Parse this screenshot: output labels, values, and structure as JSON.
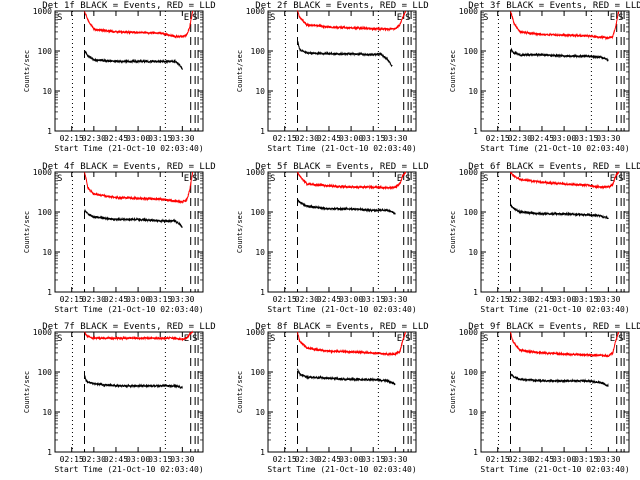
{
  "colors": {
    "events": "#000000",
    "lld": "#ff0000",
    "background": "#ffffff"
  },
  "chart_data": [
    {
      "type": "line",
      "title": "Det 1f BLACK = Events, RED = LLD",
      "xlabel": "Start Time (21-Oct-10 02:03:40)",
      "ylabel": "Counts/sec",
      "yscale": "log",
      "ylim": [
        1,
        1000
      ],
      "y_ticks": [
        "1",
        "10",
        "100",
        "1000"
      ],
      "xlim": [
        "02:03:40",
        "03:44:00"
      ],
      "x_ticks": [
        "02:15",
        "02:30",
        "02:45",
        "03:00",
        "03:15",
        "03:30"
      ],
      "markers": {
        "start": "S",
        "end": "E"
      },
      "vlines": [
        {
          "style": "dotted",
          "time": "02:15:30"
        },
        {
          "style": "dashed",
          "time": "02:23:40"
        },
        {
          "style": "dotted",
          "time": "03:18:30"
        },
        {
          "style": "dashed",
          "time": "03:35:40"
        },
        {
          "style": "dashed",
          "time": "03:38:40"
        },
        {
          "style": "dashed",
          "time": "03:40:40"
        }
      ],
      "series": [
        {
          "name": "LLD",
          "color": "red",
          "x": [
            "02:23:40",
            "02:26:00",
            "02:30:00",
            "02:45:00",
            "03:00:00",
            "03:15:00",
            "03:25:00",
            "03:30:00",
            "03:33:00",
            "03:35:00",
            "03:37:00"
          ],
          "y": [
            1000,
            600,
            350,
            300,
            290,
            280,
            230,
            230,
            250,
            400,
            1000
          ]
        },
        {
          "name": "Events",
          "color": "black",
          "x": [
            "02:23:40",
            "02:26:00",
            "02:30:00",
            "02:45:00",
            "03:00:00",
            "03:15:00",
            "03:25:00",
            "03:28:00",
            "03:30:00"
          ],
          "y": [
            100,
            75,
            60,
            55,
            55,
            55,
            55,
            45,
            35
          ]
        }
      ]
    },
    {
      "type": "line",
      "title": "Det 2f BLACK = Events, RED = LLD",
      "xlabel": "Start Time (21-Oct-10 02:03:40)",
      "ylabel": "Counts/sec",
      "yscale": "log",
      "ylim": [
        1,
        1000
      ],
      "y_ticks": [
        "1",
        "10",
        "100",
        "1000"
      ],
      "xlim": [
        "02:03:40",
        "03:44:00"
      ],
      "x_ticks": [
        "02:15",
        "02:30",
        "02:45",
        "03:00",
        "03:15",
        "03:30"
      ],
      "markers": {
        "start": "S",
        "end": "E"
      },
      "vlines": [
        {
          "style": "dotted",
          "time": "02:15:30"
        },
        {
          "style": "dashed",
          "time": "02:23:40"
        },
        {
          "style": "dotted",
          "time": "03:18:30"
        },
        {
          "style": "dashed",
          "time": "03:35:40"
        },
        {
          "style": "dashed",
          "time": "03:38:40"
        },
        {
          "style": "dashed",
          "time": "03:40:40"
        }
      ],
      "series": [
        {
          "name": "LLD",
          "color": "red",
          "x": [
            "02:23:40",
            "02:25:00",
            "02:30:00",
            "02:45:00",
            "03:00:00",
            "03:15:00",
            "03:25:00",
            "03:30:00",
            "03:33:00",
            "03:35:00",
            "03:37:00"
          ],
          "y": [
            1000,
            700,
            450,
            400,
            380,
            360,
            350,
            360,
            450,
            700,
            1000
          ]
        },
        {
          "name": "Events",
          "color": "black",
          "x": [
            "02:23:40",
            "02:25:00",
            "02:30:00",
            "02:45:00",
            "03:00:00",
            "03:15:00",
            "03:20:00",
            "03:25:00",
            "03:28:00"
          ],
          "y": [
            180,
            110,
            90,
            85,
            85,
            80,
            85,
            60,
            40
          ]
        }
      ]
    },
    {
      "type": "line",
      "title": "Det 3f BLACK = Events, RED = LLD",
      "xlabel": "Start Time (21-Oct-10 02:03:40)",
      "ylabel": "Counts/sec",
      "yscale": "log",
      "ylim": [
        1,
        1000
      ],
      "y_ticks": [
        "1",
        "10",
        "100",
        "1000"
      ],
      "xlim": [
        "02:03:40",
        "03:44:00"
      ],
      "x_ticks": [
        "02:15",
        "02:30",
        "02:45",
        "03:00",
        "03:15",
        "03:30"
      ],
      "markers": {
        "start": "S",
        "end": "E"
      },
      "vlines": [
        {
          "style": "dotted",
          "time": "02:15:30"
        },
        {
          "style": "dashed",
          "time": "02:23:40"
        },
        {
          "style": "dotted",
          "time": "03:18:30"
        },
        {
          "style": "dashed",
          "time": "03:35:40"
        },
        {
          "style": "dashed",
          "time": "03:38:40"
        },
        {
          "style": "dashed",
          "time": "03:40:40"
        }
      ],
      "series": [
        {
          "name": "LLD",
          "color": "red",
          "x": [
            "02:23:40",
            "02:26:00",
            "02:30:00",
            "02:45:00",
            "03:00:00",
            "03:15:00",
            "03:25:00",
            "03:30:00",
            "03:33:00",
            "03:35:00",
            "03:37:00"
          ],
          "y": [
            1000,
            500,
            300,
            260,
            250,
            240,
            220,
            210,
            230,
            400,
            1000
          ]
        },
        {
          "name": "Events",
          "color": "black",
          "x": [
            "02:23:40",
            "02:26:00",
            "02:30:00",
            "02:45:00",
            "03:00:00",
            "03:15:00",
            "03:25:00",
            "03:30:00"
          ],
          "y": [
            110,
            90,
            80,
            80,
            75,
            75,
            70,
            60
          ]
        }
      ]
    },
    {
      "type": "line",
      "title": "Det 4f BLACK = Events, RED = LLD",
      "xlabel": "Start Time (21-Oct-10 02:03:40)",
      "ylabel": "Counts/sec",
      "yscale": "log",
      "ylim": [
        1,
        1000
      ],
      "y_ticks": [
        "1",
        "10",
        "100",
        "1000"
      ],
      "xlim": [
        "02:03:40",
        "03:44:00"
      ],
      "x_ticks": [
        "02:15",
        "02:30",
        "02:45",
        "03:00",
        "03:15",
        "03:30"
      ],
      "markers": {
        "start": "S",
        "end": "E"
      },
      "vlines": [
        {
          "style": "dotted",
          "time": "02:15:30"
        },
        {
          "style": "dashed",
          "time": "02:23:40"
        },
        {
          "style": "dotted",
          "time": "03:18:30"
        },
        {
          "style": "dashed",
          "time": "03:35:40"
        },
        {
          "style": "dashed",
          "time": "03:38:40"
        },
        {
          "style": "dashed",
          "time": "03:40:40"
        }
      ],
      "series": [
        {
          "name": "LLD",
          "color": "red",
          "x": [
            "02:23:40",
            "02:26:00",
            "02:30:00",
            "02:45:00",
            "03:00:00",
            "03:15:00",
            "03:25:00",
            "03:30:00",
            "03:33:00",
            "03:35:00",
            "03:37:00"
          ],
          "y": [
            1000,
            400,
            280,
            230,
            220,
            210,
            190,
            180,
            200,
            350,
            1000
          ]
        },
        {
          "name": "Events",
          "color": "black",
          "x": [
            "02:23:40",
            "02:25:00",
            "02:30:00",
            "02:45:00",
            "03:00:00",
            "03:15:00",
            "03:25:00",
            "03:28:00",
            "03:30:00"
          ],
          "y": [
            110,
            95,
            75,
            65,
            65,
            60,
            60,
            50,
            40
          ]
        }
      ]
    },
    {
      "type": "line",
      "title": "Det 5f BLACK = Events, RED = LLD",
      "xlabel": "Start Time (21-Oct-10 02:03:40)",
      "ylabel": "Counts/sec",
      "yscale": "log",
      "ylim": [
        1,
        1000
      ],
      "y_ticks": [
        "1",
        "10",
        "100",
        "1000"
      ],
      "xlim": [
        "02:03:40",
        "03:44:00"
      ],
      "x_ticks": [
        "02:15",
        "02:30",
        "02:45",
        "03:00",
        "03:15",
        "03:30"
      ],
      "markers": {
        "start": "S",
        "end": "E"
      },
      "vlines": [
        {
          "style": "dotted",
          "time": "02:15:30"
        },
        {
          "style": "dashed",
          "time": "02:23:40"
        },
        {
          "style": "dotted",
          "time": "03:18:30"
        },
        {
          "style": "dashed",
          "time": "03:35:40"
        },
        {
          "style": "dashed",
          "time": "03:38:40"
        },
        {
          "style": "dashed",
          "time": "03:40:40"
        }
      ],
      "series": [
        {
          "name": "LLD",
          "color": "red",
          "x": [
            "02:23:40",
            "02:25:00",
            "02:30:00",
            "02:45:00",
            "03:00:00",
            "03:15:00",
            "03:25:00",
            "03:30:00",
            "03:33:00",
            "03:35:00",
            "03:37:00"
          ],
          "y": [
            1000,
            800,
            500,
            450,
            420,
            420,
            400,
            420,
            500,
            800,
            1000
          ]
        },
        {
          "name": "Events",
          "color": "black",
          "x": [
            "02:23:40",
            "02:25:00",
            "02:30:00",
            "02:45:00",
            "03:00:00",
            "03:15:00",
            "03:25:00",
            "03:30:00"
          ],
          "y": [
            200,
            180,
            140,
            120,
            120,
            110,
            110,
            90
          ]
        }
      ]
    },
    {
      "type": "line",
      "title": "Det 6f BLACK = Events, RED = LLD",
      "xlabel": "Start Time (21-Oct-10 02:03:40)",
      "ylabel": "Counts/sec",
      "yscale": "log",
      "ylim": [
        1,
        1000
      ],
      "y_ticks": [
        "1",
        "10",
        "100",
        "1000"
      ],
      "xlim": [
        "02:03:40",
        "03:44:00"
      ],
      "x_ticks": [
        "02:15",
        "02:30",
        "02:45",
        "03:00",
        "03:15",
        "03:30"
      ],
      "markers": {
        "start": "S",
        "end": "E"
      },
      "vlines": [
        {
          "style": "dotted",
          "time": "02:15:30"
        },
        {
          "style": "dashed",
          "time": "02:23:40"
        },
        {
          "style": "dotted",
          "time": "03:18:30"
        },
        {
          "style": "dashed",
          "time": "03:35:40"
        },
        {
          "style": "dashed",
          "time": "03:38:40"
        },
        {
          "style": "dashed",
          "time": "03:40:40"
        }
      ],
      "series": [
        {
          "name": "LLD",
          "color": "red",
          "x": [
            "02:23:40",
            "02:25:00",
            "02:30:00",
            "02:45:00",
            "03:00:00",
            "03:15:00",
            "03:25:00",
            "03:30:00",
            "03:33:00",
            "03:35:00",
            "03:37:00"
          ],
          "y": [
            1000,
            850,
            650,
            550,
            500,
            470,
            420,
            420,
            480,
            800,
            1000
          ]
        },
        {
          "name": "Events",
          "color": "black",
          "x": [
            "02:23:40",
            "02:25:00",
            "02:30:00",
            "02:45:00",
            "03:00:00",
            "03:15:00",
            "03:25:00",
            "03:30:00"
          ],
          "y": [
            150,
            130,
            100,
            90,
            90,
            85,
            80,
            70
          ]
        }
      ]
    },
    {
      "type": "line",
      "title": "Det 7f BLACK = Events, RED = LLD",
      "xlabel": "Start Time (21-Oct-10 02:03:40)",
      "ylabel": "Counts/sec",
      "yscale": "log",
      "ylim": [
        1,
        1000
      ],
      "y_ticks": [
        "1",
        "10",
        "100",
        "1000"
      ],
      "xlim": [
        "02:03:40",
        "03:44:00"
      ],
      "x_ticks": [
        "02:15",
        "02:30",
        "02:45",
        "03:00",
        "03:15",
        "03:30"
      ],
      "markers": {
        "start": "S",
        "end": "E"
      },
      "vlines": [
        {
          "style": "dotted",
          "time": "02:15:30"
        },
        {
          "style": "dashed",
          "time": "02:23:40"
        },
        {
          "style": "dotted",
          "time": "03:18:30"
        },
        {
          "style": "dashed",
          "time": "03:35:40"
        },
        {
          "style": "dashed",
          "time": "03:38:40"
        },
        {
          "style": "dashed",
          "time": "03:40:40"
        }
      ],
      "series": [
        {
          "name": "LLD",
          "color": "red",
          "x": [
            "02:23:40",
            "02:25:00",
            "02:30:00",
            "02:45:00",
            "03:00:00",
            "03:15:00",
            "03:25:00",
            "03:30:00",
            "03:33:00",
            "03:35:00",
            "03:37:00"
          ],
          "y": [
            1000,
            800,
            700,
            700,
            700,
            700,
            700,
            650,
            700,
            900,
            1000
          ]
        },
        {
          "name": "Events",
          "color": "black",
          "x": [
            "02:23:40",
            "02:25:00",
            "02:30:00",
            "02:45:00",
            "03:00:00",
            "03:15:00",
            "03:25:00",
            "03:30:00"
          ],
          "y": [
            80,
            60,
            50,
            45,
            45,
            45,
            45,
            40
          ]
        }
      ]
    },
    {
      "type": "line",
      "title": "Det 8f BLACK = Events, RED = LLD",
      "xlabel": "Start Time (21-Oct-10 02:03:40)",
      "ylabel": "Counts/sec",
      "yscale": "log",
      "ylim": [
        1,
        1000
      ],
      "y_ticks": [
        "1",
        "10",
        "100",
        "1000"
      ],
      "xlim": [
        "02:03:40",
        "03:44:00"
      ],
      "x_ticks": [
        "02:15",
        "02:30",
        "02:45",
        "03:00",
        "03:15",
        "03:30"
      ],
      "markers": {
        "start": "S",
        "end": "E"
      },
      "vlines": [
        {
          "style": "dotted",
          "time": "02:15:30"
        },
        {
          "style": "dashed",
          "time": "02:23:40"
        },
        {
          "style": "dotted",
          "time": "03:18:30"
        },
        {
          "style": "dashed",
          "time": "03:35:40"
        },
        {
          "style": "dashed",
          "time": "03:38:40"
        },
        {
          "style": "dashed",
          "time": "03:40:40"
        }
      ],
      "series": [
        {
          "name": "LLD",
          "color": "red",
          "x": [
            "02:23:40",
            "02:25:00",
            "02:30:00",
            "02:45:00",
            "03:00:00",
            "03:15:00",
            "03:25:00",
            "03:30:00",
            "03:33:00",
            "03:35:00",
            "03:37:00"
          ],
          "y": [
            1000,
            600,
            400,
            330,
            320,
            300,
            280,
            280,
            320,
            600,
            1000
          ]
        },
        {
          "name": "Events",
          "color": "black",
          "x": [
            "02:23:40",
            "02:25:00",
            "02:30:00",
            "02:45:00",
            "03:00:00",
            "03:15:00",
            "03:25:00",
            "03:30:00"
          ],
          "y": [
            120,
            90,
            75,
            70,
            65,
            65,
            60,
            50
          ]
        }
      ]
    },
    {
      "type": "line",
      "title": "Det 9f BLACK = Events, RED = LLD",
      "xlabel": "Start Time (21-Oct-10 02:03:40)",
      "ylabel": "Counts/sec",
      "yscale": "log",
      "ylim": [
        1,
        1000
      ],
      "y_ticks": [
        "1",
        "10",
        "100",
        "1000"
      ],
      "xlim": [
        "02:03:40",
        "03:44:00"
      ],
      "x_ticks": [
        "02:15",
        "02:30",
        "02:45",
        "03:00",
        "03:15",
        "03:30"
      ],
      "markers": {
        "start": "S",
        "end": "E"
      },
      "vlines": [
        {
          "style": "dotted",
          "time": "02:15:30"
        },
        {
          "style": "dashed",
          "time": "02:23:40"
        },
        {
          "style": "dotted",
          "time": "03:18:30"
        },
        {
          "style": "dashed",
          "time": "03:35:40"
        },
        {
          "style": "dashed",
          "time": "03:38:40"
        },
        {
          "style": "dashed",
          "time": "03:40:40"
        }
      ],
      "series": [
        {
          "name": "LLD",
          "color": "red",
          "x": [
            "02:23:40",
            "02:25:00",
            "02:30:00",
            "02:45:00",
            "03:00:00",
            "03:15:00",
            "03:25:00",
            "03:30:00",
            "03:33:00",
            "03:35:00",
            "03:37:00"
          ],
          "y": [
            1000,
            600,
            350,
            300,
            280,
            270,
            260,
            250,
            300,
            600,
            1000
          ]
        },
        {
          "name": "Events",
          "color": "black",
          "x": [
            "02:23:40",
            "02:25:00",
            "02:30:00",
            "02:45:00",
            "03:00:00",
            "03:15:00",
            "03:25:00",
            "03:30:00"
          ],
          "y": [
            90,
            80,
            65,
            60,
            60,
            60,
            55,
            45
          ]
        }
      ]
    }
  ]
}
